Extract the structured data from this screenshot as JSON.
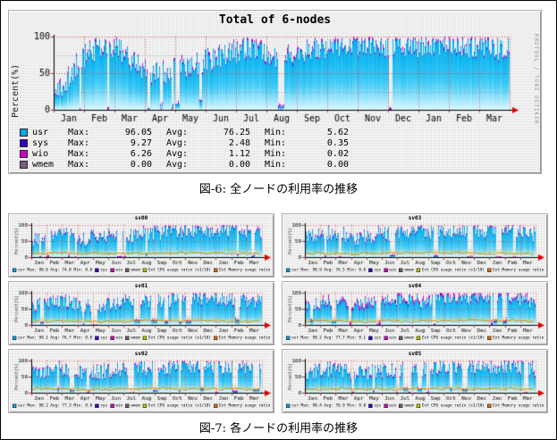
{
  "figure6": {
    "caption": "図-6: 全ノードの利用率の推移"
  },
  "figure7": {
    "caption": "図-7: 各ノードの利用率の推移"
  },
  "palette": {
    "usr": "#00A8EC",
    "usr_top": "#00AEEF",
    "usr_mid": "#3EC9F5",
    "usr_bot": "#DCF8FF",
    "usr_edge": "#0090D8",
    "sys": "#3300CC",
    "wio": "#D400CC",
    "wmem": "#7D5A7D",
    "ext_cpu": "#C8C800",
    "ext_mem": "#E87000",
    "grid_major": "#CC4444",
    "grid_minor": "#999999",
    "axis": "#000000",
    "arrow": "#DD0000",
    "tick": "#993333",
    "frame_bg": "#F3F3F3",
    "text": "#000000",
    "watermark_text": "#999999"
  },
  "main_chart": {
    "title": "Total of 6-nodes",
    "watermark": "RRDTOOL / TOBI OETIKER",
    "ylabel": "Percent(%)",
    "legend_labels": {
      "max": "Max:",
      "avg": "Avg:",
      "min": "Min:"
    },
    "legend": [
      {
        "name": "usr",
        "color": "#00A8EC",
        "max": "96.05",
        "avg": "76.25",
        "min": "5.62"
      },
      {
        "name": "sys",
        "color": "#3300CC",
        "max": "9.27",
        "avg": "2.48",
        "min": "0.35"
      },
      {
        "name": "wio",
        "color": "#D400CC",
        "max": "6.26",
        "avg": "1.12",
        "min": "0.02"
      },
      {
        "name": "wmem",
        "color": "#7D5A7D",
        "max": "0.00",
        "avg": "0.00",
        "min": "0.00"
      }
    ]
  },
  "small_legend_labels": {
    "usr": "usr",
    "max": "Max:",
    "avg": "Avg:",
    "min": "Min:",
    "sys": "sys",
    "wio": "wio",
    "wmem": "wmem",
    "ext_cpu": "Ext CPU usage ratio (x1/10)",
    "ext_mem": "Ext Memory usage ratio"
  },
  "small_charts": [
    {
      "title": "sv00",
      "stats": {
        "max": "98.6",
        "avg": "74.8",
        "min": "0.8"
      }
    },
    {
      "title": "sv01",
      "stats": {
        "max": "98.1",
        "avg": "76.7",
        "min": "0.8"
      }
    },
    {
      "title": "sv02",
      "stats": {
        "max": "98.2",
        "avg": "77.3",
        "min": "0.8"
      }
    },
    {
      "title": "sv03",
      "stats": {
        "max": "98.9",
        "avg": "76.5",
        "min": "0.8"
      }
    },
    {
      "title": "sv04",
      "stats": {
        "max": "98.2",
        "avg": "77.7",
        "min": "0.1"
      }
    },
    {
      "title": "sv05",
      "stats": {
        "max": "98.4",
        "avg": "76.9",
        "min": "0.8"
      }
    }
  ],
  "chart_data": [
    {
      "type": "area",
      "title": "Total of 6-nodes",
      "ylabel": "Percent(%)",
      "ylim": [
        0,
        100
      ],
      "yticks": [
        0,
        50,
        100
      ],
      "x": [
        "Jan",
        "Feb",
        "Mar",
        "Apr",
        "May",
        "Jun",
        "Jul",
        "Aug",
        "Sep",
        "Oct",
        "Nov",
        "Dec",
        "Jan",
        "Feb",
        "Mar"
      ],
      "grid": true,
      "legend_position": "bottom",
      "series": [
        {
          "name": "usr",
          "values": [
            18,
            78,
            82,
            48,
            55,
            72,
            82,
            68,
            84,
            90,
            86,
            86,
            90,
            86,
            80
          ],
          "max": 96.05,
          "avg": 76.25,
          "min": 5.62
        },
        {
          "name": "sys",
          "values": [
            2,
            3,
            3,
            2,
            2,
            2,
            3,
            2,
            3,
            3,
            3,
            2,
            3,
            2,
            2
          ],
          "max": 9.27,
          "avg": 2.48,
          "min": 0.35
        },
        {
          "name": "wio",
          "values": [
            1,
            2,
            2,
            1,
            1,
            1,
            1,
            1,
            1,
            2,
            1,
            1,
            2,
            1,
            1
          ],
          "max": 6.26,
          "avg": 1.12,
          "min": 0.02
        },
        {
          "name": "wmem",
          "values": [
            0,
            0,
            0,
            0,
            0,
            0,
            0,
            0,
            0,
            0,
            0,
            0,
            0,
            0,
            0
          ],
          "max": 0.0,
          "avg": 0.0,
          "min": 0.0
        }
      ],
      "render_hints": {
        "seed": 11,
        "noise": 17,
        "gap_prob": 0.018,
        "gap_max": 4,
        "sys_pct": 2.5,
        "wio_pct": 2.5,
        "ext_lines": false,
        "forced_gaps": [
          [
            0.205,
            3
          ],
          [
            0.232,
            3
          ],
          [
            0.258,
            2
          ],
          [
            0.492,
            7
          ]
        ]
      }
    },
    {
      "type": "area",
      "title": "sv00",
      "ylabel": "Percent(%)",
      "ylim": [
        0,
        100
      ],
      "yticks": [
        0,
        50,
        100
      ],
      "x": [
        "Jan",
        "Feb",
        "Mar",
        "Apr",
        "May",
        "Jun",
        "Jul",
        "Aug",
        "Sep",
        "Oct",
        "Nov",
        "Dec",
        "Jan",
        "Feb",
        "Mar"
      ],
      "grid": true,
      "legend_position": "bottom",
      "series": [
        {
          "name": "usr",
          "values": [
            50,
            68,
            74,
            52,
            62,
            70,
            66,
            72,
            76,
            80,
            78,
            80,
            82,
            78,
            68
          ],
          "max": 98.6,
          "avg": 74.8,
          "min": 0.8
        },
        {
          "name": "Ext CPU usage ratio (x1/10)",
          "values": [
            12,
            15,
            14,
            12,
            13,
            14,
            13,
            15,
            15,
            16,
            15,
            14,
            15,
            14,
            13
          ]
        },
        {
          "name": "Ext Memory usage ratio",
          "values": [
            9,
            10,
            11,
            9,
            10,
            10,
            10,
            11,
            11,
            12,
            11,
            10,
            11,
            10,
            10
          ]
        }
      ],
      "render_hints": {
        "seed": 21,
        "noise": 24,
        "gap_prob": 0.05,
        "gap_max": 6,
        "sys_pct": 3,
        "wio_pct": 3.5,
        "ext_lines": true
      }
    },
    {
      "type": "area",
      "title": "sv01",
      "ylabel": "Percent(%)",
      "ylim": [
        0,
        100
      ],
      "yticks": [
        0,
        50,
        100
      ],
      "x": [
        "Jan",
        "Feb",
        "Mar",
        "Apr",
        "May",
        "Jun",
        "Jul",
        "Aug",
        "Sep",
        "Oct",
        "Nov",
        "Dec",
        "Jan",
        "Feb",
        "Mar"
      ],
      "grid": true,
      "legend_position": "bottom",
      "series": [
        {
          "name": "usr",
          "values": [
            56,
            72,
            78,
            56,
            60,
            68,
            74,
            70,
            76,
            82,
            80,
            82,
            80,
            76,
            70
          ],
          "max": 98.1,
          "avg": 76.7,
          "min": 0.8
        },
        {
          "name": "Ext CPU usage ratio (x1/10)",
          "values": [
            13,
            14,
            15,
            12,
            12,
            14,
            14,
            14,
            15,
            15,
            16,
            14,
            15,
            13,
            13
          ]
        },
        {
          "name": "Ext Memory usage ratio",
          "values": [
            10,
            10,
            11,
            9,
            9,
            10,
            11,
            10,
            11,
            12,
            11,
            11,
            10,
            10,
            9
          ]
        }
      ],
      "render_hints": {
        "seed": 22,
        "noise": 24,
        "gap_prob": 0.05,
        "gap_max": 6,
        "sys_pct": 3,
        "wio_pct": 3.5,
        "ext_lines": true
      }
    },
    {
      "type": "area",
      "title": "sv02",
      "ylabel": "Percent(%)",
      "ylim": [
        0,
        100
      ],
      "yticks": [
        0,
        50,
        100
      ],
      "x": [
        "Jan",
        "Feb",
        "Mar",
        "Apr",
        "May",
        "Jun",
        "Jul",
        "Aug",
        "Sep",
        "Oct",
        "Nov",
        "Dec",
        "Jan",
        "Feb",
        "Mar"
      ],
      "grid": true,
      "legend_position": "bottom",
      "series": [
        {
          "name": "usr",
          "values": [
            54,
            74,
            76,
            58,
            64,
            70,
            72,
            74,
            78,
            82,
            80,
            78,
            82,
            78,
            72
          ],
          "max": 98.2,
          "avg": 77.3,
          "min": 0.8
        },
        {
          "name": "Ext CPU usage ratio (x1/10)",
          "values": [
            12,
            14,
            14,
            13,
            13,
            14,
            14,
            15,
            15,
            16,
            15,
            15,
            15,
            14,
            12
          ]
        },
        {
          "name": "Ext Memory usage ratio",
          "values": [
            9,
            11,
            10,
            9,
            10,
            10,
            11,
            11,
            11,
            12,
            11,
            10,
            11,
            10,
            10
          ]
        }
      ],
      "render_hints": {
        "seed": 23,
        "noise": 24,
        "gap_prob": 0.05,
        "gap_max": 6,
        "sys_pct": 3,
        "wio_pct": 3.5,
        "ext_lines": true
      }
    },
    {
      "type": "area",
      "title": "sv03",
      "ylabel": "Percent(%)",
      "ylim": [
        0,
        100
      ],
      "yticks": [
        0,
        50,
        100
      ],
      "x": [
        "Jan",
        "Feb",
        "Mar",
        "Apr",
        "May",
        "Jun",
        "Jul",
        "Aug",
        "Sep",
        "Oct",
        "Nov",
        "Dec",
        "Jan",
        "Feb",
        "Mar"
      ],
      "grid": true,
      "legend_position": "bottom",
      "series": [
        {
          "name": "usr",
          "values": [
            58,
            70,
            74,
            54,
            66,
            72,
            70,
            74,
            78,
            82,
            82,
            80,
            82,
            78,
            70
          ],
          "max": 98.9,
          "avg": 76.5,
          "min": 0.8
        },
        {
          "name": "Ext CPU usage ratio (x1/10)",
          "values": [
            13,
            15,
            14,
            12,
            13,
            15,
            14,
            15,
            16,
            16,
            15,
            14,
            15,
            14,
            13
          ]
        },
        {
          "name": "Ext Memory usage ratio",
          "values": [
            10,
            11,
            10,
            9,
            10,
            11,
            10,
            11,
            12,
            12,
            11,
            10,
            11,
            10,
            10
          ]
        }
      ],
      "render_hints": {
        "seed": 31,
        "noise": 24,
        "gap_prob": 0.05,
        "gap_max": 6,
        "sys_pct": 3,
        "wio_pct": 3.5,
        "ext_lines": true
      }
    },
    {
      "type": "area",
      "title": "sv04",
      "ylabel": "Percent(%)",
      "ylim": [
        0,
        100
      ],
      "yticks": [
        0,
        50,
        100
      ],
      "x": [
        "Jan",
        "Feb",
        "Mar",
        "Apr",
        "May",
        "Jun",
        "Jul",
        "Aug",
        "Sep",
        "Oct",
        "Nov",
        "Dec",
        "Jan",
        "Feb",
        "Mar"
      ],
      "grid": true,
      "legend_position": "bottom",
      "series": [
        {
          "name": "usr",
          "values": [
            52,
            66,
            72,
            56,
            70,
            76,
            78,
            72,
            80,
            84,
            80,
            82,
            84,
            80,
            72
          ],
          "max": 98.2,
          "avg": 77.7,
          "min": 0.1
        },
        {
          "name": "Ext CPU usage ratio (x1/10)",
          "values": [
            14,
            16,
            15,
            13,
            14,
            16,
            15,
            16,
            16,
            17,
            16,
            15,
            16,
            15,
            14
          ]
        },
        {
          "name": "Ext Memory usage ratio",
          "values": [
            10,
            12,
            11,
            10,
            11,
            12,
            11,
            12,
            12,
            13,
            12,
            11,
            12,
            11,
            10
          ]
        }
      ],
      "render_hints": {
        "seed": 32,
        "noise": 20,
        "gap_prob": 0.045,
        "gap_max": 5,
        "sys_pct": 7,
        "wio_pct": 10,
        "ext_lines": true
      }
    },
    {
      "type": "area",
      "title": "sv05",
      "ylabel": "Percent(%)",
      "ylim": [
        0,
        100
      ],
      "yticks": [
        0,
        50,
        100
      ],
      "x": [
        "Jan",
        "Feb",
        "Mar",
        "Apr",
        "May",
        "Jun",
        "Jul",
        "Aug",
        "Sep",
        "Oct",
        "Nov",
        "Dec",
        "Jan",
        "Feb",
        "Mar"
      ],
      "grid": true,
      "legend_position": "bottom",
      "series": [
        {
          "name": "usr",
          "values": [
            55,
            71,
            75,
            55,
            63,
            69,
            72,
            72,
            78,
            80,
            82,
            80,
            80,
            78,
            70
          ],
          "max": 98.4,
          "avg": 76.9,
          "min": 0.8
        },
        {
          "name": "Ext CPU usage ratio (x1/10)",
          "values": [
            12,
            14,
            15,
            12,
            13,
            14,
            14,
            14,
            15,
            16,
            15,
            14,
            15,
            14,
            13
          ]
        },
        {
          "name": "Ext Memory usage ratio",
          "values": [
            9,
            10,
            11,
            9,
            10,
            10,
            10,
            11,
            11,
            12,
            11,
            11,
            10,
            10,
            9
          ]
        }
      ],
      "render_hints": {
        "seed": 33,
        "noise": 24,
        "gap_prob": 0.05,
        "gap_max": 6,
        "sys_pct": 3,
        "wio_pct": 3.5,
        "ext_lines": true
      }
    }
  ]
}
